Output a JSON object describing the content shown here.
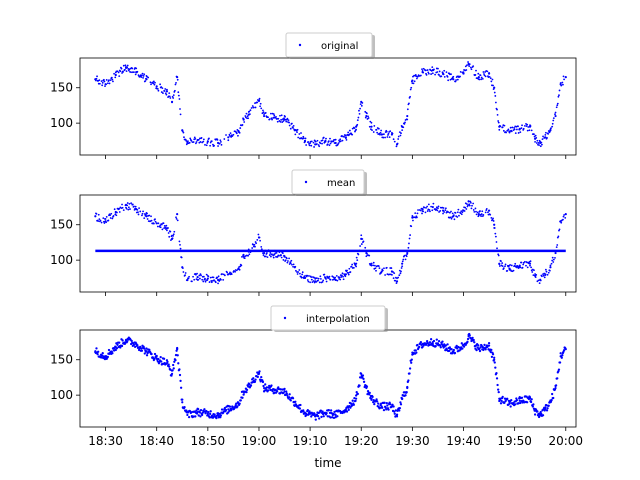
{
  "chart_data": {
    "type": "scatter",
    "xlabel": "time",
    "x_ticks": [
      "18:30",
      "18:40",
      "18:50",
      "19:00",
      "19:10",
      "19:20",
      "19:30",
      "19:40",
      "19:50",
      "20:00"
    ],
    "y_ticks": [
      100,
      150
    ],
    "xlim": [
      "18:25",
      "20:02"
    ],
    "ylim": [
      55,
      192
    ],
    "marker_color": "#0000ff",
    "legend_position": "top-center",
    "panels": [
      {
        "legend": "original",
        "gaps": true,
        "overlay_constant": null,
        "series": [
          [
            "18:28",
            162
          ],
          [
            "18:30",
            155
          ],
          [
            "18:32",
            168
          ],
          [
            "18:34",
            178
          ],
          [
            "18:36",
            172
          ],
          [
            "18:38",
            162
          ],
          [
            "18:40",
            152
          ],
          [
            "18:42",
            145
          ],
          [
            "18:43",
            130
          ],
          [
            "18:44",
            165
          ],
          [
            "18:45",
            90
          ],
          [
            "18:46",
            72
          ],
          [
            "18:48",
            76
          ],
          [
            "18:50",
            74
          ],
          [
            "18:52",
            72
          ],
          [
            "18:54",
            80
          ],
          [
            "18:56",
            88
          ],
          [
            "18:57",
            105
          ],
          [
            "18:58",
            112
          ],
          [
            "19:00",
            132
          ],
          [
            "19:01",
            110
          ],
          [
            "19:03",
            108
          ],
          [
            "19:05",
            105
          ],
          [
            "19:07",
            90
          ],
          [
            "19:09",
            75
          ],
          [
            "19:11",
            70
          ],
          [
            "19:13",
            75
          ],
          [
            "19:15",
            72
          ],
          [
            "19:17",
            80
          ],
          [
            "19:19",
            95
          ],
          [
            "19:20",
            130
          ],
          [
            "19:21",
            110
          ],
          [
            "19:22",
            95
          ],
          [
            "19:24",
            84
          ],
          [
            "19:26",
            84
          ],
          [
            "19:27",
            70
          ],
          [
            "19:28",
            95
          ],
          [
            "19:29",
            110
          ],
          [
            "19:30",
            160
          ],
          [
            "19:32",
            172
          ],
          [
            "19:34",
            175
          ],
          [
            "19:36",
            170
          ],
          [
            "19:38",
            162
          ],
          [
            "19:40",
            170
          ],
          [
            "19:41",
            183
          ],
          [
            "19:43",
            165
          ],
          [
            "19:45",
            170
          ],
          [
            "19:46",
            150
          ],
          [
            "19:47",
            95
          ],
          [
            "19:49",
            88
          ],
          [
            "19:51",
            92
          ],
          [
            "19:53",
            95
          ],
          [
            "19:54",
            78
          ],
          [
            "19:55",
            72
          ],
          [
            "19:56",
            80
          ],
          [
            "19:57",
            90
          ],
          [
            "19:58",
            110
          ],
          [
            "19:59",
            155
          ],
          [
            "20:00",
            165
          ]
        ]
      },
      {
        "legend": "mean",
        "gaps": true,
        "overlay_constant": 113,
        "series": [
          [
            "18:28",
            162
          ],
          [
            "18:30",
            155
          ],
          [
            "18:32",
            168
          ],
          [
            "18:34",
            178
          ],
          [
            "18:36",
            172
          ],
          [
            "18:38",
            162
          ],
          [
            "18:40",
            152
          ],
          [
            "18:42",
            145
          ],
          [
            "18:43",
            130
          ],
          [
            "18:44",
            165
          ],
          [
            "18:45",
            90
          ],
          [
            "18:46",
            72
          ],
          [
            "18:48",
            76
          ],
          [
            "18:50",
            74
          ],
          [
            "18:52",
            72
          ],
          [
            "18:54",
            80
          ],
          [
            "18:56",
            88
          ],
          [
            "18:57",
            105
          ],
          [
            "18:58",
            112
          ],
          [
            "19:00",
            132
          ],
          [
            "19:01",
            110
          ],
          [
            "19:03",
            108
          ],
          [
            "19:05",
            105
          ],
          [
            "19:07",
            90
          ],
          [
            "19:09",
            75
          ],
          [
            "19:11",
            70
          ],
          [
            "19:13",
            75
          ],
          [
            "19:15",
            72
          ],
          [
            "19:17",
            80
          ],
          [
            "19:19",
            95
          ],
          [
            "19:20",
            130
          ],
          [
            "19:21",
            110
          ],
          [
            "19:22",
            95
          ],
          [
            "19:24",
            84
          ],
          [
            "19:26",
            84
          ],
          [
            "19:27",
            70
          ],
          [
            "19:28",
            95
          ],
          [
            "19:29",
            110
          ],
          [
            "19:30",
            160
          ],
          [
            "19:32",
            172
          ],
          [
            "19:34",
            175
          ],
          [
            "19:36",
            170
          ],
          [
            "19:38",
            162
          ],
          [
            "19:40",
            170
          ],
          [
            "19:41",
            183
          ],
          [
            "19:43",
            165
          ],
          [
            "19:45",
            170
          ],
          [
            "19:46",
            150
          ],
          [
            "19:47",
            95
          ],
          [
            "19:49",
            88
          ],
          [
            "19:51",
            92
          ],
          [
            "19:53",
            95
          ],
          [
            "19:54",
            78
          ],
          [
            "19:55",
            72
          ],
          [
            "19:56",
            80
          ],
          [
            "19:57",
            90
          ],
          [
            "19:58",
            110
          ],
          [
            "19:59",
            155
          ],
          [
            "20:00",
            165
          ]
        ]
      },
      {
        "legend": "interpolation",
        "gaps": false,
        "overlay_constant": null,
        "series": [
          [
            "18:28",
            162
          ],
          [
            "18:30",
            155
          ],
          [
            "18:32",
            168
          ],
          [
            "18:34",
            178
          ],
          [
            "18:36",
            172
          ],
          [
            "18:38",
            162
          ],
          [
            "18:40",
            152
          ],
          [
            "18:42",
            145
          ],
          [
            "18:43",
            130
          ],
          [
            "18:44",
            165
          ],
          [
            "18:45",
            90
          ],
          [
            "18:46",
            72
          ],
          [
            "18:48",
            76
          ],
          [
            "18:50",
            74
          ],
          [
            "18:52",
            72
          ],
          [
            "18:54",
            80
          ],
          [
            "18:56",
            88
          ],
          [
            "18:57",
            105
          ],
          [
            "18:58",
            112
          ],
          [
            "19:00",
            132
          ],
          [
            "19:01",
            110
          ],
          [
            "19:03",
            108
          ],
          [
            "19:05",
            105
          ],
          [
            "19:07",
            90
          ],
          [
            "19:09",
            75
          ],
          [
            "19:11",
            70
          ],
          [
            "19:13",
            75
          ],
          [
            "19:15",
            72
          ],
          [
            "19:17",
            80
          ],
          [
            "19:19",
            95
          ],
          [
            "19:20",
            130
          ],
          [
            "19:21",
            110
          ],
          [
            "19:22",
            95
          ],
          [
            "19:24",
            84
          ],
          [
            "19:26",
            84
          ],
          [
            "19:27",
            70
          ],
          [
            "19:28",
            95
          ],
          [
            "19:29",
            110
          ],
          [
            "19:30",
            160
          ],
          [
            "19:32",
            172
          ],
          [
            "19:34",
            175
          ],
          [
            "19:36",
            170
          ],
          [
            "19:38",
            162
          ],
          [
            "19:40",
            170
          ],
          [
            "19:41",
            183
          ],
          [
            "19:43",
            165
          ],
          [
            "19:45",
            170
          ],
          [
            "19:46",
            150
          ],
          [
            "19:47",
            95
          ],
          [
            "19:49",
            88
          ],
          [
            "19:51",
            92
          ],
          [
            "19:53",
            95
          ],
          [
            "19:54",
            78
          ],
          [
            "19:55",
            72
          ],
          [
            "19:56",
            80
          ],
          [
            "19:57",
            90
          ],
          [
            "19:58",
            110
          ],
          [
            "19:59",
            155
          ],
          [
            "20:00",
            165
          ]
        ]
      }
    ]
  }
}
